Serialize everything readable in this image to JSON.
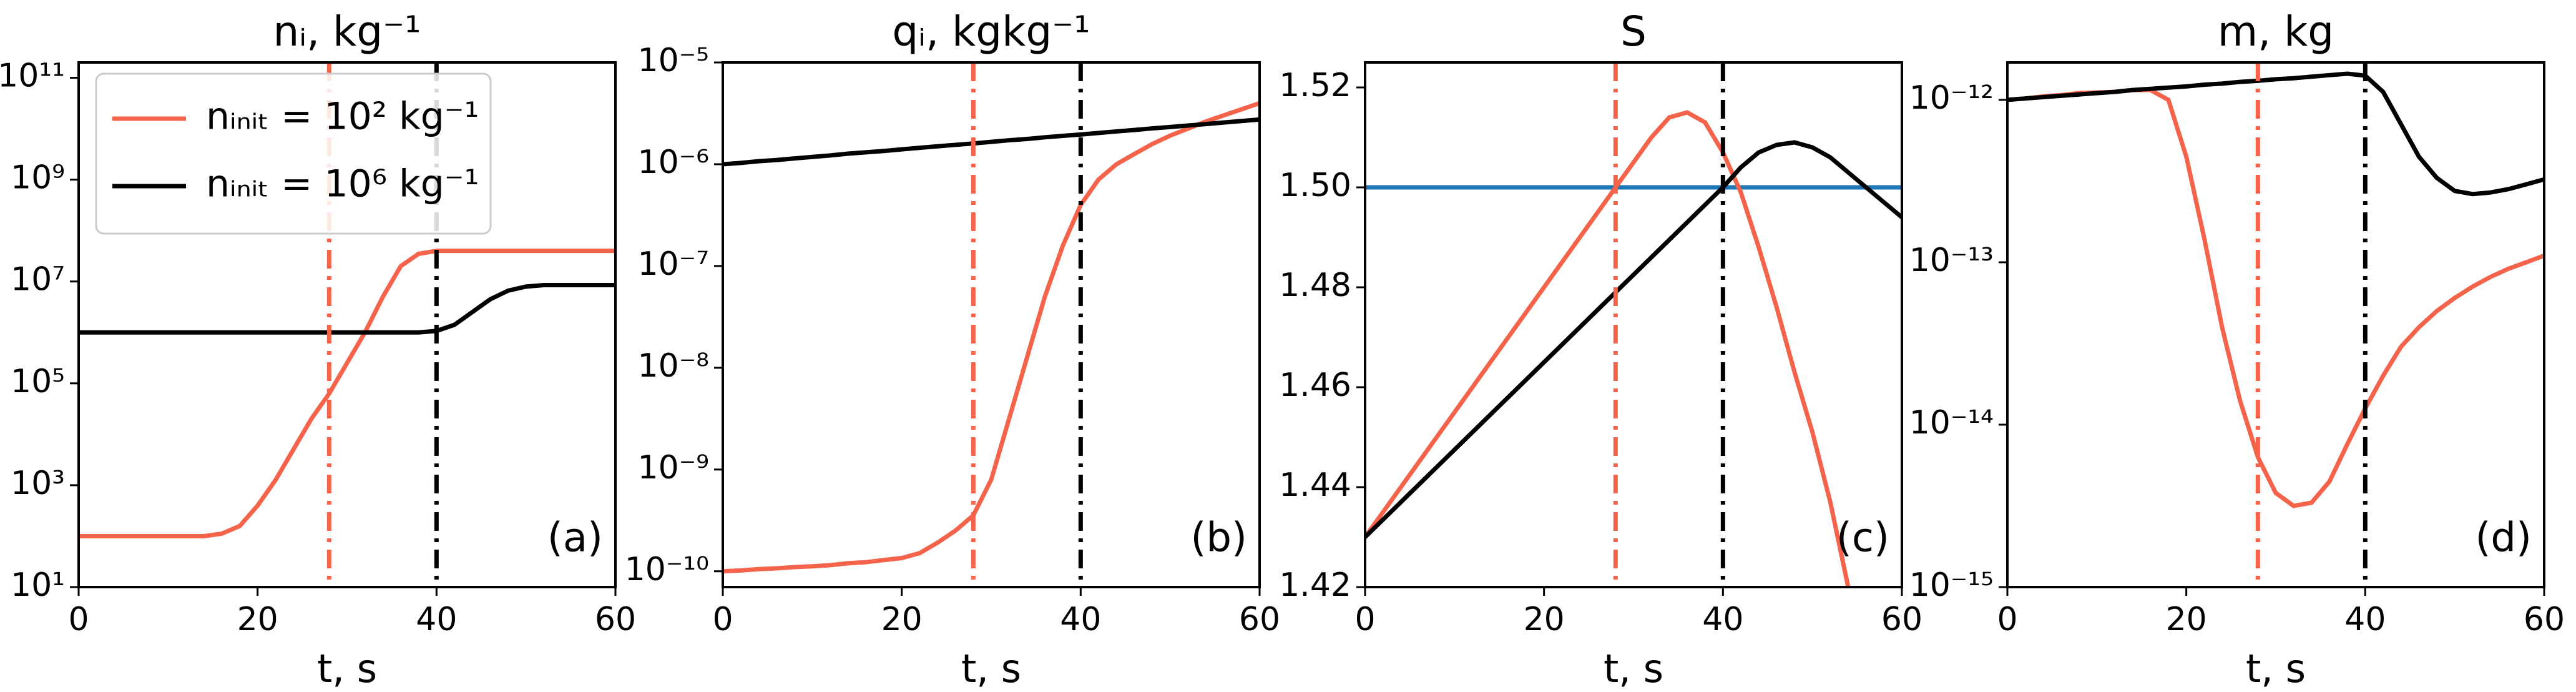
{
  "chart_data": [
    {
      "type": "line",
      "title": "nᵢ, kg⁻¹",
      "xlabel": "t, s",
      "yscale": "log",
      "legend": "upper left",
      "panel_label": "(a)",
      "x": [
        0,
        2,
        4,
        6,
        8,
        10,
        12,
        14,
        16,
        18,
        20,
        22,
        24,
        26,
        28,
        30,
        32,
        34,
        36,
        38,
        40,
        42,
        44,
        46,
        48,
        50,
        52,
        54,
        56,
        58,
        60
      ],
      "xlim": [
        0,
        60
      ],
      "xticks": [
        0,
        20,
        40,
        60
      ],
      "ylim": [
        10,
        200000000000.0
      ],
      "yticks": [
        {
          "value": 10,
          "label": "10¹"
        },
        {
          "value": 1000,
          "label": "10³"
        },
        {
          "value": 100000,
          "label": "10⁵"
        },
        {
          "value": 10000000,
          "label": "10⁷"
        },
        {
          "value": 1000000000,
          "label": "10⁹"
        },
        {
          "value": 100000000000,
          "label": "10¹¹"
        }
      ],
      "vlines": [
        {
          "x": 28,
          "color": "#f4634a"
        },
        {
          "x": 40,
          "color": "#000000"
        }
      ],
      "series": [
        {
          "name": "nᵢₙᵢₜ = 10² kg⁻¹",
          "color": "#f4634a",
          "values": [
            100,
            100,
            100,
            100,
            100,
            100,
            100,
            100,
            112,
            158,
            398,
            1259,
            5012,
            19953,
            63096,
            251189,
            1000000,
            5000000,
            20000000,
            35000000,
            40000000,
            40000000,
            40000000,
            40000000,
            40000000,
            40000000,
            40000000,
            40000000,
            40000000,
            40000000,
            40000000
          ]
        },
        {
          "name": "nᵢₙᵢₜ = 10⁶ kg⁻¹",
          "color": "#000000",
          "values": [
            1000000,
            1000000,
            1000000,
            1000000,
            1000000,
            1000000,
            1000000,
            1000000,
            1000000,
            1000000,
            1000000,
            1000000,
            1000000,
            1000000,
            1000000,
            1000000,
            1000000,
            1000000,
            1000000,
            1000000,
            1070000,
            1410000,
            2510000,
            4470000,
            6610000,
            7940000,
            8500000,
            8500000,
            8500000,
            8500000,
            8500000
          ]
        }
      ]
    },
    {
      "type": "line",
      "title": "qᵢ, kgkg⁻¹",
      "xlabel": "t, s",
      "yscale": "log",
      "panel_label": "(b)",
      "x": [
        0,
        2,
        4,
        6,
        8,
        10,
        12,
        14,
        16,
        18,
        20,
        22,
        24,
        26,
        28,
        30,
        32,
        34,
        36,
        38,
        40,
        42,
        44,
        46,
        48,
        50,
        52,
        54,
        56,
        58,
        60
      ],
      "xlim": [
        0,
        60
      ],
      "xticks": [
        0,
        20,
        40,
        60
      ],
      "ylim": [
        7e-11,
        1e-05
      ],
      "yticks": [
        {
          "value": 1e-10,
          "label": "10⁻¹⁰"
        },
        {
          "value": 1e-09,
          "label": "10⁻⁹"
        },
        {
          "value": 1e-08,
          "label": "10⁻⁸"
        },
        {
          "value": 1e-07,
          "label": "10⁻⁷"
        },
        {
          "value": 1e-06,
          "label": "10⁻⁶"
        },
        {
          "value": 1e-05,
          "label": "10⁻⁵"
        }
      ],
      "vlines": [
        {
          "x": 28,
          "color": "#f4634a"
        },
        {
          "x": 40,
          "color": "#000000"
        }
      ],
      "series": [
        {
          "color": "#f4634a",
          "values": [
            1e-10,
            1.02e-10,
            1.05e-10,
            1.07e-10,
            1.1e-10,
            1.12e-10,
            1.15e-10,
            1.2e-10,
            1.23e-10,
            1.29e-10,
            1.35e-10,
            1.51e-10,
            1.91e-10,
            2.51e-10,
            3.55e-10,
            7.94e-10,
            3.16e-09,
            1.26e-08,
            5.01e-08,
            1.58e-07,
            3.98e-07,
            7.08e-07,
            1e-06,
            1.26e-06,
            1.58e-06,
            1.91e-06,
            2.24e-06,
            2.63e-06,
            3.02e-06,
            3.47e-06,
            3.98e-06
          ]
        },
        {
          "color": "#000000",
          "values": [
            1e-06,
            1.03e-06,
            1.07e-06,
            1.1e-06,
            1.14e-06,
            1.18e-06,
            1.22e-06,
            1.27e-06,
            1.31e-06,
            1.35e-06,
            1.4e-06,
            1.45e-06,
            1.5e-06,
            1.55e-06,
            1.6e-06,
            1.66e-06,
            1.72e-06,
            1.77e-06,
            1.84e-06,
            1.9e-06,
            1.96e-06,
            2.03e-06,
            2.1e-06,
            2.17e-06,
            2.25e-06,
            2.32e-06,
            2.4e-06,
            2.48e-06,
            2.57e-06,
            2.66e-06,
            2.75e-06
          ]
        }
      ]
    },
    {
      "type": "line",
      "title": "S",
      "xlabel": "t, s",
      "panel_label": "(c)",
      "x": [
        0,
        2,
        4,
        6,
        8,
        10,
        12,
        14,
        16,
        18,
        20,
        22,
        24,
        26,
        28,
        30,
        32,
        34,
        36,
        38,
        40,
        42,
        44,
        46,
        48,
        50,
        52,
        54,
        56,
        58,
        60
      ],
      "xlim": [
        0,
        60
      ],
      "xticks": [
        0,
        20,
        40,
        60
      ],
      "ylim": [
        1.42,
        1.525
      ],
      "yticks": [
        {
          "value": 1.42,
          "label": "1.42"
        },
        {
          "value": 1.44,
          "label": "1.44"
        },
        {
          "value": 1.46,
          "label": "1.46"
        },
        {
          "value": 1.48,
          "label": "1.48"
        },
        {
          "value": 1.5,
          "label": "1.50"
        },
        {
          "value": 1.52,
          "label": "1.52"
        }
      ],
      "vlines": [
        {
          "x": 28,
          "color": "#f4634a"
        },
        {
          "x": 40,
          "color": "#000000"
        }
      ],
      "hlines": [
        {
          "y": 1.5,
          "color": "#1f77b4"
        }
      ],
      "series": [
        {
          "color": "#f4634a",
          "values": [
            1.43,
            1.435,
            1.44,
            1.445,
            1.45,
            1.455,
            1.46,
            1.465,
            1.47,
            1.475,
            1.48,
            1.485,
            1.49,
            1.495,
            1.5,
            1.505,
            1.51,
            1.514,
            1.515,
            1.513,
            1.507,
            1.499,
            1.488,
            1.476,
            1.463,
            1.451,
            1.437,
            1.42,
            null,
            null,
            null
          ]
        },
        {
          "color": "#000000",
          "values": [
            1.43,
            1.4335,
            1.437,
            1.4405,
            1.444,
            1.4475,
            1.451,
            1.4545,
            1.458,
            1.4615,
            1.465,
            1.4685,
            1.472,
            1.4755,
            1.479,
            1.4825,
            1.486,
            1.4895,
            1.493,
            1.4965,
            1.5,
            1.504,
            1.507,
            1.5085,
            1.509,
            1.508,
            1.506,
            1.503,
            1.5,
            1.497,
            1.494
          ]
        }
      ]
    },
    {
      "type": "line",
      "title": "m, kg",
      "xlabel": "t, s",
      "yscale": "log",
      "panel_label": "(d)",
      "x": [
        0,
        2,
        4,
        6,
        8,
        10,
        12,
        14,
        16,
        18,
        20,
        22,
        24,
        26,
        28,
        30,
        32,
        34,
        36,
        38,
        40,
        42,
        44,
        46,
        48,
        50,
        52,
        54,
        56,
        58,
        60
      ],
      "xlim": [
        0,
        60
      ],
      "xticks": [
        0,
        20,
        40,
        60
      ],
      "ylim": [
        1e-15,
        1.7e-12
      ],
      "yticks": [
        {
          "value": 1e-15,
          "label": "10⁻¹⁵"
        },
        {
          "value": 1e-14,
          "label": "10⁻¹⁴"
        },
        {
          "value": 1e-13,
          "label": "10⁻¹³"
        },
        {
          "value": 1e-12,
          "label": "10⁻¹²"
        }
      ],
      "vlines": [
        {
          "x": 28,
          "color": "#f4634a"
        },
        {
          "x": 40,
          "color": "#000000"
        }
      ],
      "series": [
        {
          "color": "#f4634a",
          "values": [
            1e-12,
            1.02e-12,
            1.05e-12,
            1.07e-12,
            1.1e-12,
            1.11e-12,
            1.12e-12,
            1.15e-12,
            1.15e-12,
            1e-12,
            4.47e-13,
            1.41e-13,
            3.98e-14,
            1.41e-14,
            6.31e-15,
            3.8e-15,
            3.16e-15,
            3.31e-15,
            4.47e-15,
            7.59e-15,
            1.26e-14,
            2e-14,
            3.02e-14,
            3.98e-14,
            5.01e-14,
            6.03e-14,
            7.08e-14,
            8.13e-14,
            9.12e-14,
            1e-13,
            1.1e-13
          ]
        },
        {
          "color": "#000000",
          "values": [
            1e-12,
            1.02e-12,
            1.04e-12,
            1.06e-12,
            1.08e-12,
            1.1e-12,
            1.12e-12,
            1.15e-12,
            1.17e-12,
            1.19e-12,
            1.21e-12,
            1.24e-12,
            1.26e-12,
            1.29e-12,
            1.31e-12,
            1.34e-12,
            1.36e-12,
            1.39e-12,
            1.42e-12,
            1.45e-12,
            1.41e-12,
            1.12e-12,
            7.08e-13,
            4.47e-13,
            3.31e-13,
            2.75e-13,
            2.63e-13,
            2.69e-13,
            2.82e-13,
            3.02e-13,
            3.24e-13
          ]
        }
      ]
    }
  ]
}
